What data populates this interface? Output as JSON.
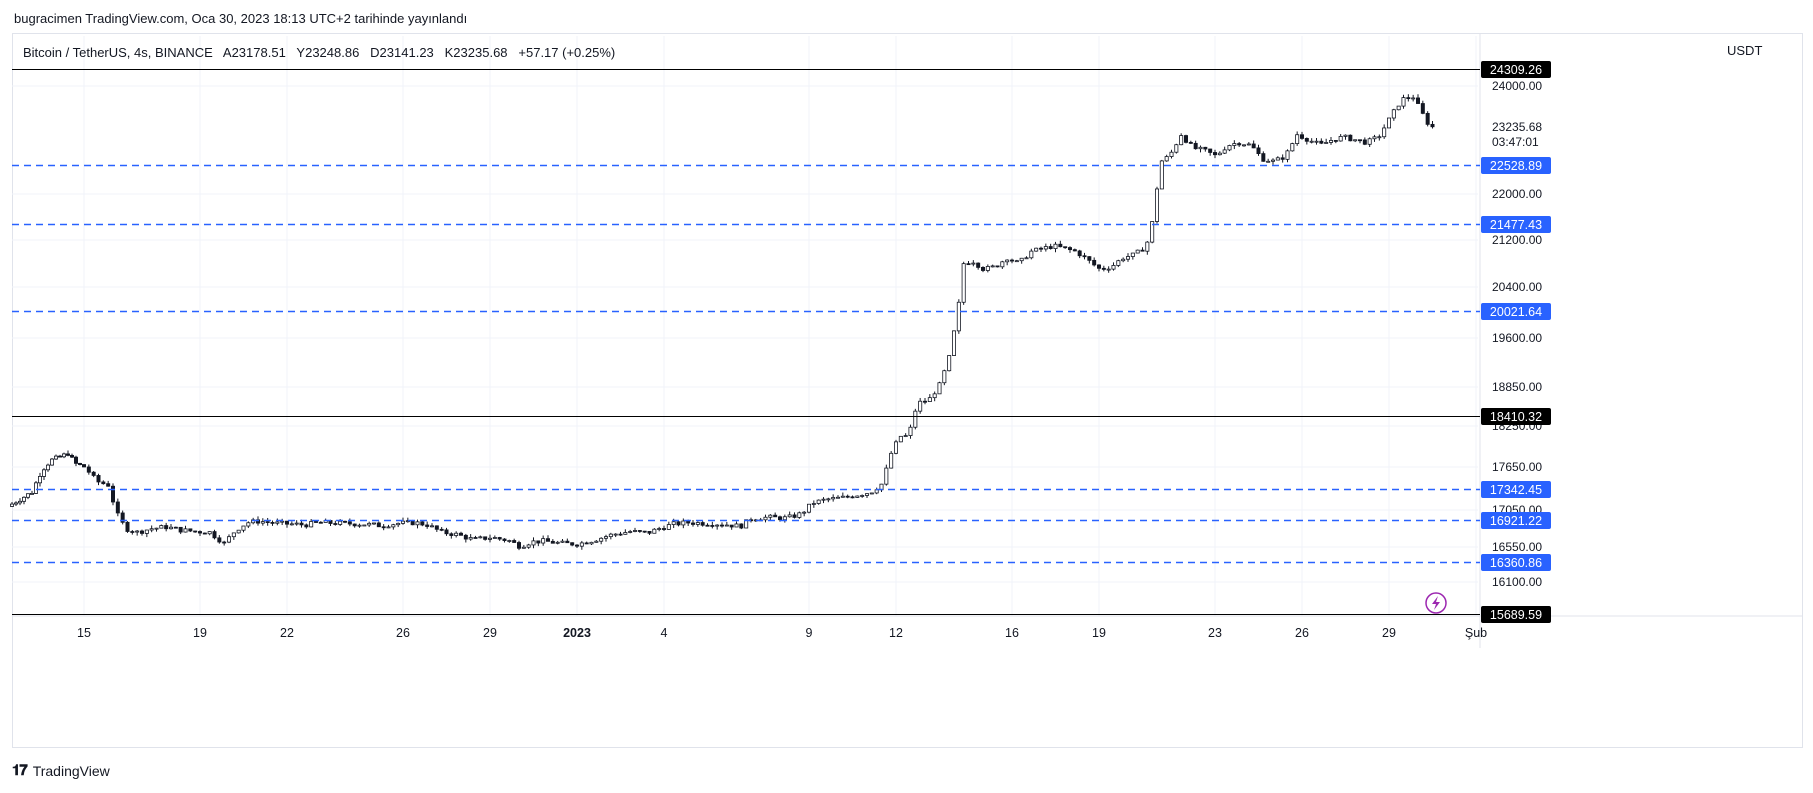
{
  "header": {
    "published": "bugracimen TradingView.com, Oca 30, 2023 18:13 UTC+2 tarihinde yayınlandı"
  },
  "legend": {
    "symbol": "Bitcoin / TetherUS, 4s, BINANCE",
    "open": "A23178.51",
    "high": "Y23248.86",
    "low": "D23141.23",
    "close": "K23235.68",
    "change": "+57.17 (+0.25%)"
  },
  "axis": {
    "currency": "USDT"
  },
  "brand": {
    "name": "TradingView",
    "logo": "tradingview-logo-icon"
  },
  "colors": {
    "support_lines": "#2962ff",
    "candle": "#131722",
    "badge_blue": "#2962ff",
    "badge_black": "#000000"
  },
  "chart_data": {
    "type": "candlestick",
    "title": "",
    "symbol": "Bitcoin / TetherUS",
    "timeframe": "4s",
    "exchange": "BINANCE",
    "ylabel": "USDT",
    "y_ticks": [
      24000.0,
      23235.68,
      22000.0,
      21200.0,
      20400.0,
      19600.0,
      18850.0,
      18250.0,
      17650.0,
      17050.0,
      16550.0,
      16100.0
    ],
    "y_tick_labels": [
      "24000.00",
      "23235.68",
      "22000.00",
      "21200.00",
      "20400.00",
      "19600.00",
      "18850.00",
      "18250.00",
      "17650.00",
      "17050.00",
      "16550.00",
      "16100.00"
    ],
    "last_price": 23235.68,
    "countdown": "03:47:01",
    "x_ticks": [
      {
        "label": "15",
        "day": 15
      },
      {
        "label": "19",
        "day": 19
      },
      {
        "label": "22",
        "day": 22
      },
      {
        "label": "26",
        "day": 26
      },
      {
        "label": "29",
        "day": 29
      },
      {
        "label": "2023",
        "day": 32,
        "bold": true
      },
      {
        "label": "4",
        "day": 35
      },
      {
        "label": "9",
        "day": 40
      },
      {
        "label": "12",
        "day": 43
      },
      {
        "label": "16",
        "day": 47
      },
      {
        "label": "19",
        "day": 50
      },
      {
        "label": "23",
        "day": 54
      },
      {
        "label": "26",
        "day": 57
      },
      {
        "label": "29",
        "day": 60
      },
      {
        "label": "Şub",
        "day": 63
      }
    ],
    "horizontal_levels": [
      {
        "value": 24309.26,
        "label": "24309.26",
        "style": "solid",
        "badge": "black"
      },
      {
        "value": 22528.89,
        "label": "22528.89",
        "style": "dashed",
        "badge": "blue"
      },
      {
        "value": 21477.43,
        "label": "21477.43",
        "style": "dashed",
        "badge": "blue"
      },
      {
        "value": 20021.64,
        "label": "20021.64",
        "style": "dashed",
        "badge": "blue"
      },
      {
        "value": 18410.32,
        "label": "18410.32",
        "style": "solid",
        "badge": "black"
      },
      {
        "value": 17342.45,
        "label": "17342.45",
        "style": "dashed",
        "badge": "blue"
      },
      {
        "value": 16921.22,
        "label": "16921.22",
        "style": "dashed",
        "badge": "blue"
      },
      {
        "value": 16360.86,
        "label": "16360.86",
        "style": "dashed",
        "badge": "blue"
      },
      {
        "value": 15689.59,
        "label": "15689.59",
        "style": "solid",
        "badge": "black"
      }
    ],
    "price_path": [
      [
        12.0,
        17100
      ],
      [
        12.5,
        17200
      ],
      [
        13.0,
        17300
      ],
      [
        13.4,
        17600
      ],
      [
        13.8,
        17750
      ],
      [
        14.2,
        17800
      ],
      [
        14.5,
        17850
      ],
      [
        14.8,
        17700
      ],
      [
        15.2,
        17650
      ],
      [
        15.6,
        17450
      ],
      [
        16.0,
        17400
      ],
      [
        16.3,
        17000
      ],
      [
        16.6,
        16800
      ],
      [
        17.0,
        16750
      ],
      [
        17.5,
        16800
      ],
      [
        18.0,
        16820
      ],
      [
        18.5,
        16780
      ],
      [
        19.0,
        16760
      ],
      [
        19.5,
        16750
      ],
      [
        20.0,
        16600
      ],
      [
        20.4,
        16780
      ],
      [
        20.8,
        16880
      ],
      [
        21.2,
        16900
      ],
      [
        21.8,
        16870
      ],
      [
        22.3,
        16860
      ],
      [
        22.8,
        16850
      ],
      [
        23.3,
        16880
      ],
      [
        24.0,
        16870
      ],
      [
        24.8,
        16860
      ],
      [
        25.4,
        16840
      ],
      [
        26.0,
        16870
      ],
      [
        26.6,
        16880
      ],
      [
        27.0,
        16850
      ],
      [
        27.5,
        16750
      ],
      [
        28.0,
        16720
      ],
      [
        28.6,
        16650
      ],
      [
        29.2,
        16680
      ],
      [
        29.8,
        16640
      ],
      [
        30.2,
        16560
      ],
      [
        30.6,
        16620
      ],
      [
        31.0,
        16630
      ],
      [
        31.6,
        16600
      ],
      [
        32.2,
        16590
      ],
      [
        32.8,
        16650
      ],
      [
        33.4,
        16720
      ],
      [
        34.0,
        16760
      ],
      [
        34.6,
        16740
      ],
      [
        35.0,
        16800
      ],
      [
        35.5,
        16860
      ],
      [
        36.0,
        16880
      ],
      [
        36.6,
        16870
      ],
      [
        37.2,
        16860
      ],
      [
        37.8,
        16830
      ],
      [
        38.2,
        16940
      ],
      [
        38.8,
        16950
      ],
      [
        39.4,
        16940
      ],
      [
        39.9,
        17000
      ],
      [
        40.3,
        17150
      ],
      [
        40.8,
        17200
      ],
      [
        41.3,
        17220
      ],
      [
        41.8,
        17260
      ],
      [
        42.3,
        17300
      ],
      [
        42.7,
        17420
      ],
      [
        43.0,
        17850
      ],
      [
        43.3,
        18100
      ],
      [
        43.6,
        18100
      ],
      [
        43.9,
        18600
      ],
      [
        44.3,
        18650
      ],
      [
        44.7,
        18900
      ],
      [
        45.0,
        19300
      ],
      [
        45.3,
        20000
      ],
      [
        45.5,
        20800
      ],
      [
        45.8,
        20850
      ],
      [
        46.2,
        20700
      ],
      [
        46.6,
        20750
      ],
      [
        47.0,
        20900
      ],
      [
        47.4,
        20800
      ],
      [
        47.8,
        21000
      ],
      [
        48.2,
        21050
      ],
      [
        48.6,
        21100
      ],
      [
        49.0,
        21050
      ],
      [
        49.4,
        21000
      ],
      [
        49.8,
        20850
      ],
      [
        50.2,
        20700
      ],
      [
        50.6,
        20750
      ],
      [
        51.0,
        20900
      ],
      [
        51.4,
        20950
      ],
      [
        51.8,
        21100
      ],
      [
        52.0,
        21500
      ],
      [
        52.3,
        22600
      ],
      [
        52.6,
        22700
      ],
      [
        53.0,
        23100
      ],
      [
        53.4,
        22850
      ],
      [
        53.8,
        22800
      ],
      [
        54.2,
        22700
      ],
      [
        54.6,
        22900
      ],
      [
        55.0,
        22950
      ],
      [
        55.4,
        22900
      ],
      [
        55.8,
        22650
      ],
      [
        56.2,
        22600
      ],
      [
        56.6,
        22700
      ],
      [
        57.0,
        23100
      ],
      [
        57.4,
        23000
      ],
      [
        57.8,
        22900
      ],
      [
        58.2,
        23000
      ],
      [
        58.6,
        23050
      ],
      [
        59.0,
        23000
      ],
      [
        59.4,
        22950
      ],
      [
        59.8,
        23050
      ],
      [
        60.2,
        23400
      ],
      [
        60.6,
        23750
      ],
      [
        61.0,
        23800
      ],
      [
        61.4,
        23400
      ],
      [
        61.6,
        23235.68
      ]
    ]
  }
}
